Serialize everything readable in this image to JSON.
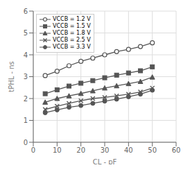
{
  "chart_data": {
    "type": "line",
    "xlabel": "CL - pF",
    "ylabel": "tPHL - ns",
    "x": [
      5,
      10,
      15,
      20,
      25,
      30,
      35,
      40,
      45,
      50
    ],
    "series": [
      {
        "name": "VCCB = 1.2 V",
        "color": "#555555",
        "marker": "open_circle",
        "values": [
          3.05,
          3.25,
          3.5,
          3.7,
          3.85,
          4.0,
          4.15,
          4.25,
          4.38,
          4.55
        ]
      },
      {
        "name": "VCCB = 1.5 V",
        "color": "#555555",
        "marker": "square",
        "values": [
          2.22,
          2.4,
          2.57,
          2.7,
          2.82,
          2.95,
          3.07,
          3.17,
          3.27,
          3.45
        ]
      },
      {
        "name": "VCCB = 1.8 V",
        "color": "#555555",
        "marker": "triangle",
        "values": [
          1.83,
          2.0,
          2.12,
          2.23,
          2.35,
          2.48,
          2.58,
          2.68,
          2.78,
          2.98
        ]
      },
      {
        "name": "VCCB = 2.5 V",
        "color": "#555555",
        "marker": "x",
        "values": [
          1.5,
          1.65,
          1.78,
          1.9,
          2.0,
          2.05,
          2.12,
          2.2,
          2.3,
          2.48
        ]
      },
      {
        "name": "VCCB = 3.3 V",
        "color": "#555555",
        "marker": "circle",
        "values": [
          1.35,
          1.48,
          1.6,
          1.68,
          1.78,
          1.88,
          1.97,
          2.08,
          2.2,
          2.38
        ]
      }
    ],
    "xlim": [
      0,
      60
    ],
    "ylim": [
      0,
      6
    ],
    "xticks": [
      0,
      10,
      20,
      30,
      40,
      50,
      60
    ],
    "yticks": [
      0,
      1,
      2,
      3,
      4,
      5,
      6
    ],
    "grid": true,
    "legend": "upper left"
  }
}
